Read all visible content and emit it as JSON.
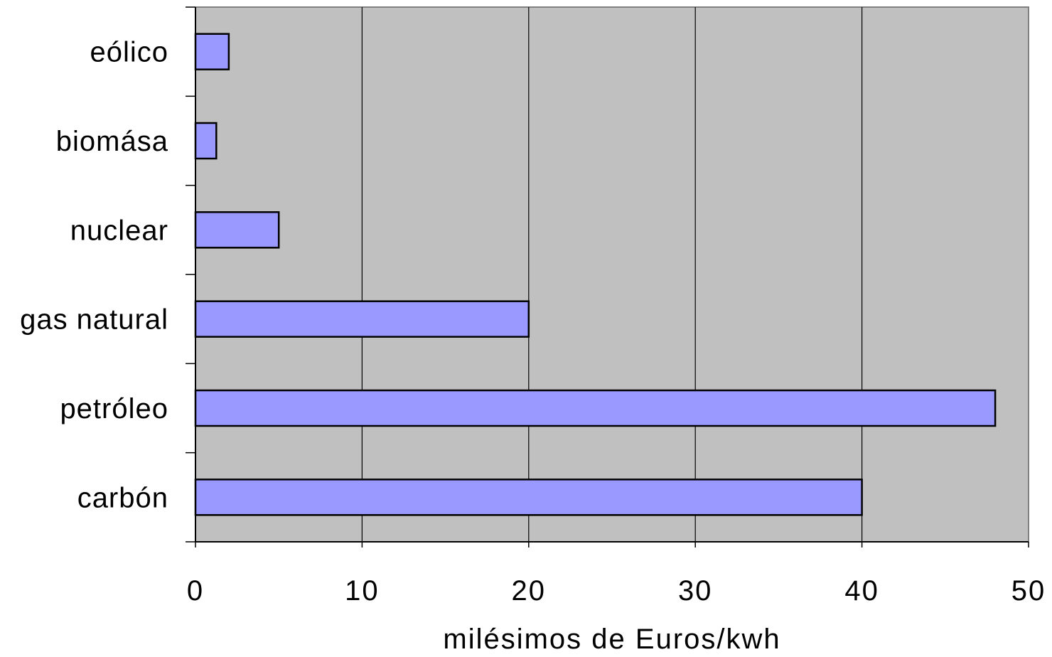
{
  "chart_data": {
    "type": "bar",
    "orientation": "horizontal",
    "categories": [
      "eólico",
      "biomása",
      "nuclear",
      "gas natural",
      "petróleo",
      "carbón"
    ],
    "values": [
      2,
      1.25,
      5,
      20,
      48,
      40
    ],
    "xlabel": "milésimos de Euros/kwh",
    "ylabel": "",
    "xlim": [
      0,
      50
    ],
    "xticks": [
      0,
      10,
      20,
      30,
      40,
      50
    ],
    "grid": "vertical",
    "legend": "none",
    "colors": {
      "bar_fill": "#9999FF",
      "bar_stroke": "#000000",
      "plot_background": "#C0C0C0",
      "gridline": "#000000"
    }
  }
}
